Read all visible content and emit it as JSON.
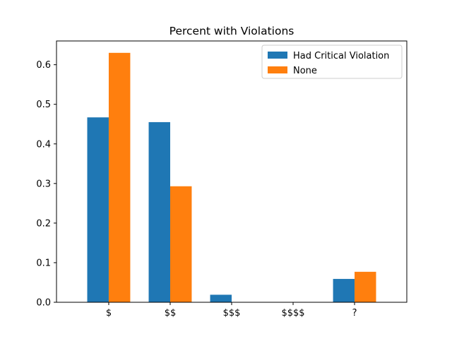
{
  "chart_data": {
    "type": "bar",
    "title": "Percent with Violations",
    "xlabel": "",
    "ylabel": "",
    "categories": [
      "$",
      "$$",
      "$$$",
      "$$$$",
      "?"
    ],
    "series": [
      {
        "name": "Had Critical Violation",
        "color": "#1f77b4",
        "values": [
          0.467,
          0.455,
          0.019,
          0.0,
          0.059
        ]
      },
      {
        "name": "None",
        "color": "#ff7f0e",
        "values": [
          0.63,
          0.293,
          0.0,
          0.0,
          0.077
        ]
      }
    ],
    "ylim": [
      0,
      0.66
    ],
    "yticks": [
      "0.0",
      "0.1",
      "0.2",
      "0.3",
      "0.4",
      "0.5",
      "0.6"
    ],
    "grid": false,
    "legend_position": "top-right"
  }
}
